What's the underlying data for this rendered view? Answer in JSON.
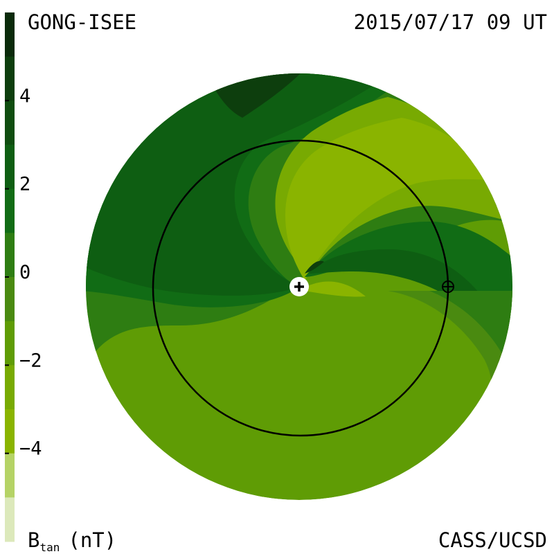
{
  "header": {
    "source": "GONG-ISEE",
    "datetime": "2015/07/17 09 UT"
  },
  "footer": {
    "credit": "CASS/UCSD",
    "unit_label_main": "B",
    "unit_label_sub": "tan",
    "unit_label_units": "(nT)"
  },
  "chart_data": {
    "type": "heatmap",
    "title": "",
    "colorbar": {
      "label": "B_tan (nT)",
      "ticks": [
        4,
        2,
        0,
        -2,
        -4
      ],
      "tick_labels": [
        "4",
        "2",
        "0",
        "−2",
        "−4"
      ],
      "range": [
        -6,
        6
      ],
      "levels": [
        {
          "lo": 5,
          "hi": 6,
          "color": "#0a2a0a"
        },
        {
          "lo": 4,
          "hi": 5,
          "color": "#0d3e0d"
        },
        {
          "lo": 3,
          "hi": 4,
          "color": "#0f4d0f"
        },
        {
          "lo": 2,
          "hi": 3,
          "color": "#0e5e12"
        },
        {
          "lo": 1,
          "hi": 2,
          "color": "#116c15"
        },
        {
          "lo": 0,
          "hi": 1,
          "color": "#2e7d12"
        },
        {
          "lo": -1,
          "hi": 0,
          "color": "#4a8a10"
        },
        {
          "lo": -2,
          "hi": -1,
          "color": "#5f9c05"
        },
        {
          "lo": -3,
          "hi": -2,
          "color": "#78aa02"
        },
        {
          "lo": -4,
          "hi": -3,
          "color": "#8ab400"
        },
        {
          "lo": -5,
          "hi": -4,
          "color": "#b5d366"
        },
        {
          "lo": -6,
          "hi": -5,
          "color": "#dce9bb"
        }
      ]
    },
    "markers": [
      {
        "name": "Sun",
        "symbol": "⊕-plus"
      },
      {
        "name": "Earth",
        "symbol": "⊕"
      }
    ],
    "earth_orbit": true
  }
}
